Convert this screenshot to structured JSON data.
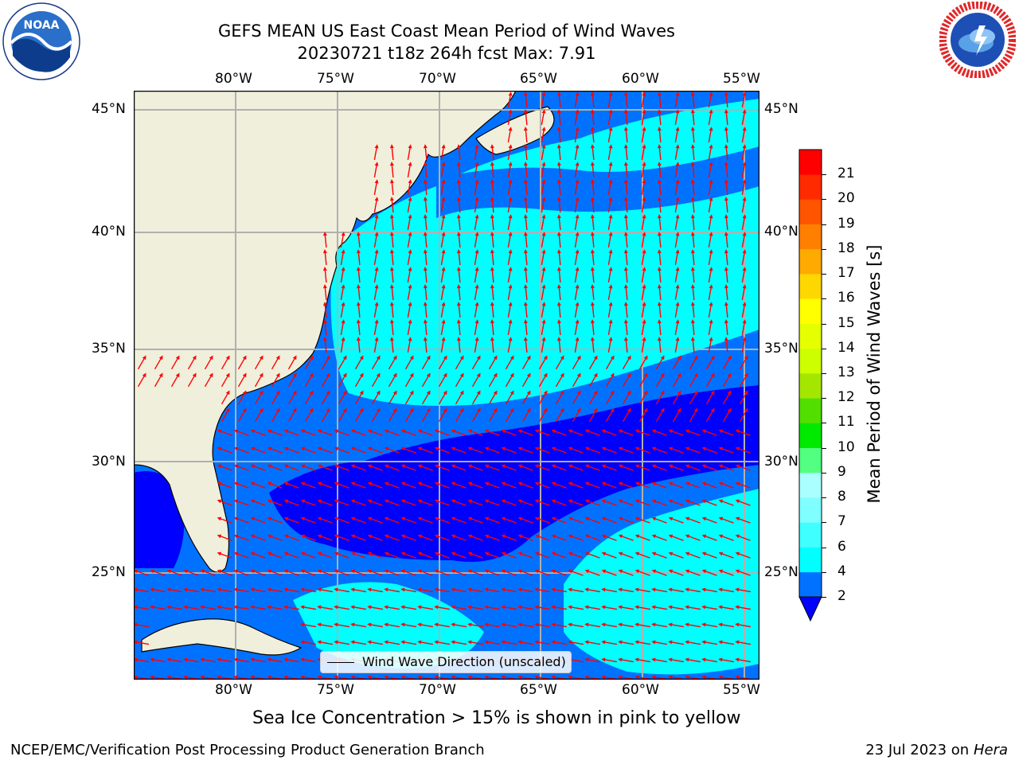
{
  "title": {
    "line1": "GEFS MEAN US East Coast Mean Period of Wind Waves",
    "line2": "20230721 t18z 264h fcst   Max: 7.91"
  },
  "logos": {
    "left": {
      "name": "noaa-logo",
      "text": "NOAA"
    },
    "right": {
      "name": "nws-logo",
      "text": "NATIONAL WEATHER SERVICE"
    }
  },
  "map": {
    "lon_ticks": [
      "80°W",
      "75°W",
      "70°W",
      "65°W",
      "60°W",
      "55°W"
    ],
    "lat_ticks": [
      "45°N",
      "40°N",
      "35°N",
      "30°N",
      "25°N"
    ],
    "lon_values": [
      -80,
      -75,
      -70,
      -65,
      -60,
      -55
    ],
    "lat_values": [
      45,
      40,
      35,
      30,
      25
    ],
    "extent": {
      "lon_min": -85,
      "lon_max": -54.3,
      "lat_min": 20.5,
      "lat_max": 45.8
    },
    "gridlines": true,
    "land_color": "#efefdc",
    "arrow_color": "#ff0000",
    "coastline_color": "#000000"
  },
  "colorbar": {
    "label": "Mean Period of Wind Waves [s]",
    "ticks": [
      "2",
      "4",
      "6",
      "7",
      "8",
      "9",
      "10",
      "11",
      "12",
      "13",
      "14",
      "15",
      "16",
      "17",
      "18",
      "19",
      "20",
      "21"
    ],
    "boundaries": [
      2,
      4,
      6,
      7,
      8,
      9,
      10,
      11,
      12,
      13,
      14,
      15,
      16,
      17,
      18,
      19,
      20,
      21
    ],
    "colors": [
      "#0072ff",
      "#00ffff",
      "#40ffff",
      "#7fffff",
      "#aaffff",
      "#52ff80",
      "#00ea00",
      "#52df00",
      "#a5e600",
      "#cdff00",
      "#e6ff00",
      "#ffff00",
      "#ffd700",
      "#ffaa00",
      "#ff8000",
      "#ff5500",
      "#ff2a00",
      "#ff0000"
    ],
    "under_color": "#0000ff",
    "extend": "min"
  },
  "legend": {
    "label": "Wind Wave Direction (unscaled)",
    "placement": "lower-center"
  },
  "subtitle": "Sea Ice Concentration > 15% is shown in pink to yellow",
  "footer": {
    "left": "NCEP/EMC/Verification Post Processing Product Generation Branch",
    "right_date": "23 Jul 2023 on ",
    "right_host": "Hera"
  }
}
